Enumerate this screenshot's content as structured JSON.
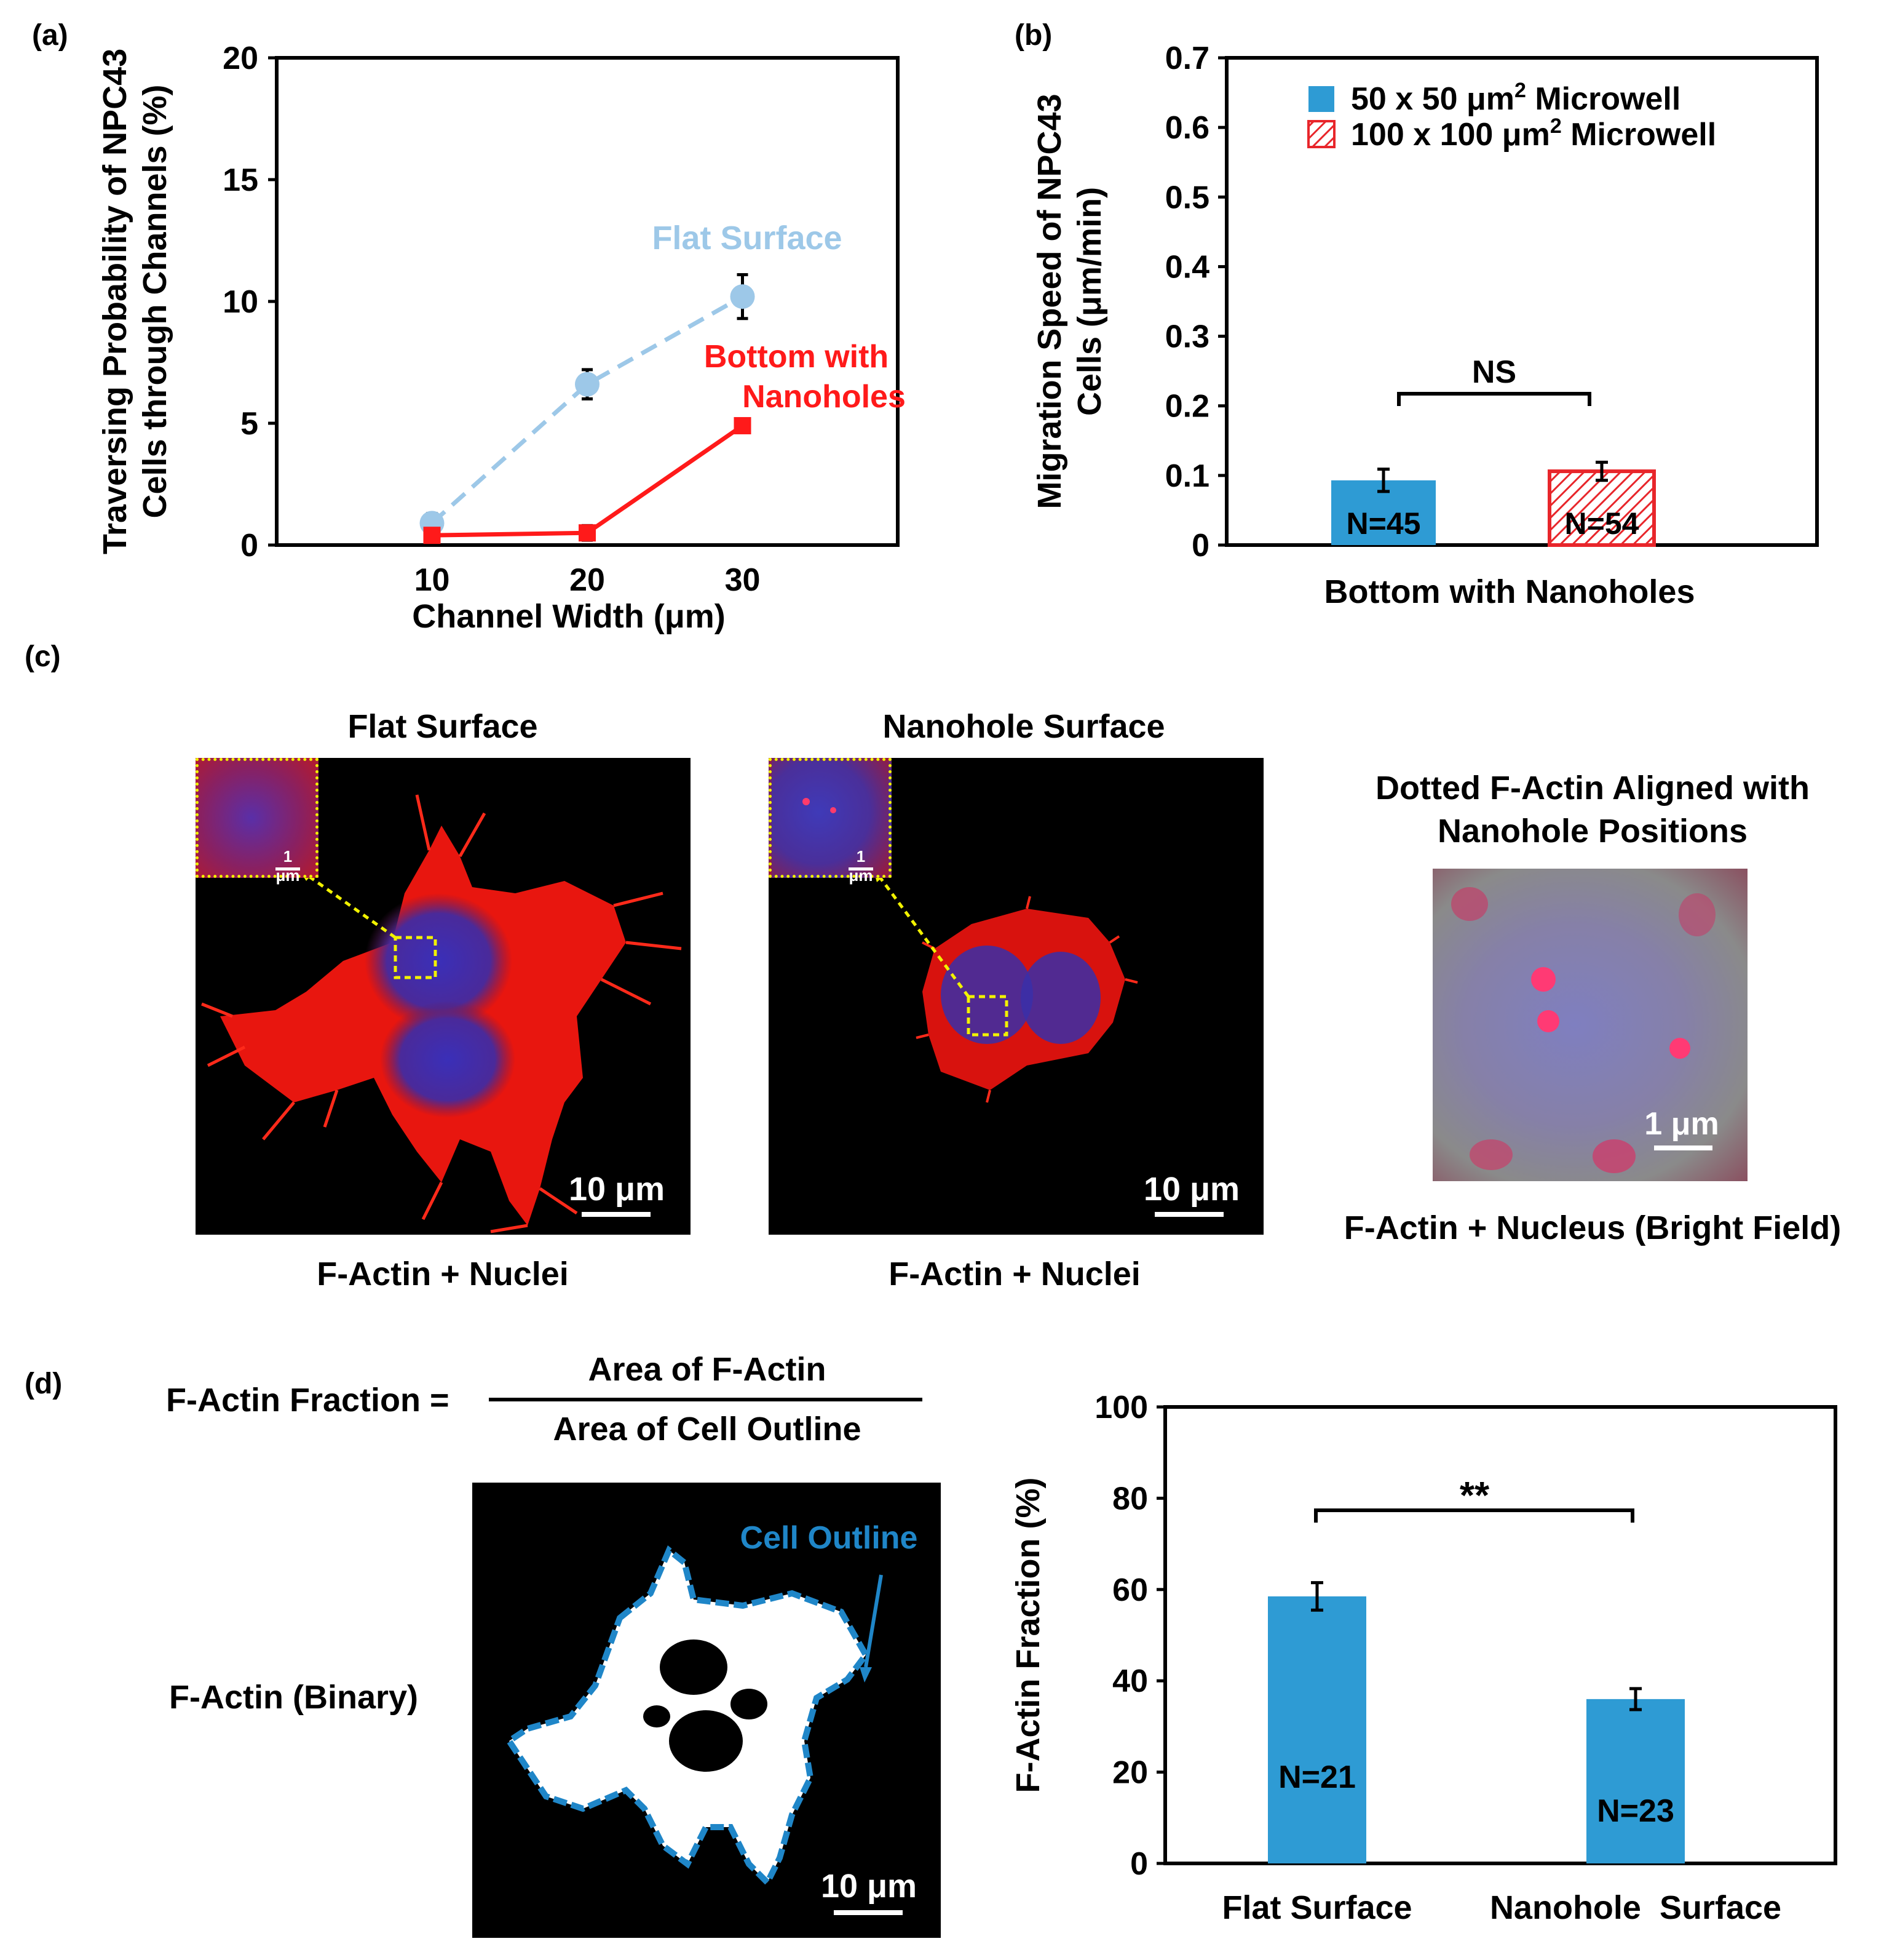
{
  "panel_labels": {
    "a": "(a)",
    "b": "(b)",
    "c": "(c)",
    "d": "(d)"
  },
  "colors": {
    "flat": "#9dc8e8",
    "nanohole": "#ff1a1a",
    "bar_blue": "#2e9bd4",
    "bar_red": "#e8262b",
    "inset": "#f2f200",
    "outline": "#1f86c8"
  },
  "chart_data": [
    {
      "type": "line",
      "id": "a",
      "xlabel": "Channel Width (μm)",
      "ylabel_line1": "Traversing Probability of NPC43",
      "ylabel_line2": "Cells through Channels (%)",
      "xlim": [
        0,
        40
      ],
      "ylim": [
        0,
        20
      ],
      "x_ticks": [
        "10",
        "20",
        "30"
      ],
      "x_tick_values": [
        10,
        20,
        30
      ],
      "y_ticks": [
        "0",
        "5",
        "10",
        "15",
        "20"
      ],
      "y_tick_values": [
        0,
        5,
        10,
        15,
        20
      ],
      "series": [
        {
          "name": "Flat Surface",
          "x": [
            10,
            20,
            30
          ],
          "values": [
            0.9,
            6.6,
            10.2
          ],
          "err": [
            0.4,
            0.6,
            0.9
          ]
        },
        {
          "name_line1": "Bottom with",
          "name_line2": "Nanoholes",
          "x": [
            10,
            20,
            30
          ],
          "values": [
            0.4,
            0.5,
            4.9
          ],
          "err": [
            0.1,
            0.3,
            0.1
          ]
        }
      ]
    },
    {
      "type": "bar",
      "id": "b",
      "xlabel": "Bottom with Nanoholes",
      "ylabel_line1": "Migration Speed of NPC43",
      "ylabel_line2": "Cells (μm/min)",
      "ylim": [
        0,
        0.7
      ],
      "y_ticks": [
        "0",
        "0.1",
        "0.2",
        "0.3",
        "0.4",
        "0.5",
        "0.6",
        "0.7"
      ],
      "y_tick_values": [
        0,
        0.1,
        0.2,
        0.3,
        0.4,
        0.5,
        0.6,
        0.7
      ],
      "series": [
        {
          "legend_main": "50 x 50 μm",
          "legend_sup": "2",
          "legend_tail": " Microwell",
          "value": 0.093,
          "err": 0.016,
          "n_label": "N=45"
        },
        {
          "legend_main": "100 x 100 μm",
          "legend_sup": "2",
          "legend_tail": " Microwell",
          "value": 0.106,
          "err": 0.013,
          "n_label": "N=54"
        }
      ],
      "significance": "NS"
    },
    {
      "type": "bar",
      "id": "d",
      "ylabel": "F-Actin Fraction (%)",
      "ylim": [
        0,
        100
      ],
      "y_ticks": [
        "0",
        "20",
        "40",
        "60",
        "80",
        "100"
      ],
      "y_tick_values": [
        0,
        20,
        40,
        60,
        80,
        100
      ],
      "categories": [
        "Flat Surface",
        "Nanohole  Surface"
      ],
      "values": [
        58.5,
        36.0
      ],
      "err": [
        3.0,
        2.3
      ],
      "n_labels": [
        "N=21",
        "N=23"
      ],
      "significance": "**"
    }
  ],
  "panel_c": {
    "flat_title": "Flat Surface",
    "nano_title": "Nanohole Surface",
    "dotted_title_line1": "Dotted F-Actin Aligned with",
    "dotted_title_line2": "Nanohole Positions",
    "flat_caption": "F-Actin + Nuclei",
    "nano_caption": "F-Actin + Nuclei",
    "dotted_caption": "F-Actin + Nucleus (Bright Field)",
    "inset_scale": "1 μm",
    "scale_10": "10 μm",
    "scale_1": "1 μm"
  },
  "panel_d": {
    "formula_lhs": "F-Actin Fraction =",
    "numerator": "Area of F-Actin",
    "denominator": "Area of Cell Outline",
    "binary_label": "F-Actin (Binary)",
    "outline_label": "Cell Outline",
    "scale_10": "10 μm"
  }
}
